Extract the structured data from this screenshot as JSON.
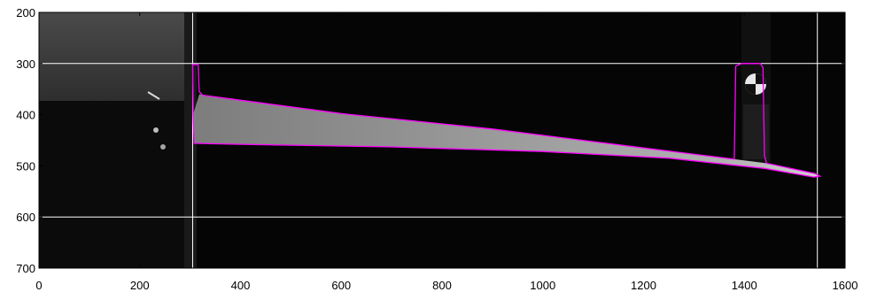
{
  "figure": {
    "x_axis": {
      "range": [
        0,
        1600
      ],
      "ticks": [
        0,
        200,
        400,
        600,
        800,
        1000,
        1200,
        1400,
        1600
      ],
      "tick_labels": [
        "0",
        "200",
        "400",
        "600",
        "800",
        "1000",
        "1200",
        "1400",
        "1600"
      ]
    },
    "y_axis": {
      "range": [
        200,
        700
      ],
      "reversed": true,
      "ticks": [
        200,
        300,
        400,
        500,
        600,
        700
      ],
      "tick_labels": [
        "200",
        "300",
        "400",
        "500",
        "600",
        "700"
      ]
    },
    "reference_lines": {
      "horizontal_y": [
        300,
        600
      ],
      "vertical_x": [
        305,
        1545
      ],
      "color": "#ffffff"
    },
    "contour": {
      "color": "#ff00ff",
      "points": [
        [
          305,
          302
        ],
        [
          316,
          302
        ],
        [
          318,
          355
        ],
        [
          325,
          362
        ],
        [
          600,
          398
        ],
        [
          900,
          428
        ],
        [
          1200,
          465
        ],
        [
          1380,
          487
        ],
        [
          1383,
          305
        ],
        [
          1395,
          300
        ],
        [
          1432,
          300
        ],
        [
          1437,
          308
        ],
        [
          1440,
          480
        ],
        [
          1444,
          495
        ],
        [
          1540,
          515
        ],
        [
          1550,
          520
        ],
        [
          1538,
          522
        ],
        [
          1440,
          505
        ],
        [
          1250,
          485
        ],
        [
          1000,
          472
        ],
        [
          700,
          463
        ],
        [
          400,
          458
        ],
        [
          308,
          456
        ],
        [
          306,
          400
        ]
      ]
    },
    "image": {
      "background_color": "#050505",
      "left_block_color": "#3e3e3e",
      "beam_color": "#b4b4b4"
    }
  }
}
